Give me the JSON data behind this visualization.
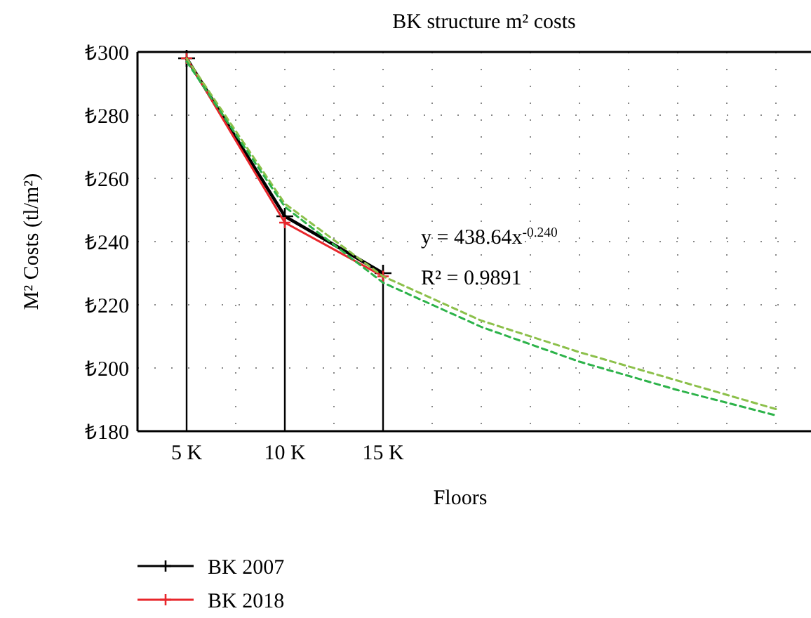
{
  "chart_data": {
    "type": "line",
    "title": "BK structure m² costs",
    "xlabel": "Floors",
    "ylabel": "M² Costs (tl/m²)",
    "categories": [
      "5 K",
      "10 K",
      "15 K",
      null,
      null,
      null,
      null
    ],
    "ylim": [
      180,
      300
    ],
    "yticks": [
      {
        "value": 180,
        "label": "₺180"
      },
      {
        "value": 200,
        "label": "₺200"
      },
      {
        "value": 220,
        "label": "₺220"
      },
      {
        "value": 240,
        "label": "₺240"
      },
      {
        "value": 260,
        "label": "₺260"
      },
      {
        "value": 280,
        "label": "₺280"
      },
      {
        "value": 300,
        "label": "₺300"
      }
    ],
    "grid": true,
    "legend": "bottom",
    "marker": "cross",
    "series": [
      {
        "type": "bar",
        "color": "#000000",
        "values": [
          298,
          248,
          230,
          null,
          null,
          null,
          null
        ]
      },
      {
        "type": "line",
        "line_style": "dashed",
        "marker": "none",
        "color": "#8cc04a",
        "values": [
          298,
          252,
          229,
          215,
          205,
          196,
          187
        ]
      },
      {
        "type": "line",
        "line_style": "dashed",
        "marker": "none",
        "color": "#2db34a",
        "values": [
          297,
          251,
          227,
          213,
          202,
          193,
          185
        ]
      },
      {
        "name": "BK 2007",
        "color": "#000000",
        "values": [
          298,
          248,
          230,
          null,
          null,
          null,
          null
        ]
      },
      {
        "name": "BK 2018",
        "color": "#e8262b",
        "values": [
          298,
          246,
          229,
          null,
          null,
          null,
          null
        ]
      }
    ],
    "annotations": [
      "y = 438.64x$^{-0.240}$",
      "R² = 0.9891"
    ]
  }
}
